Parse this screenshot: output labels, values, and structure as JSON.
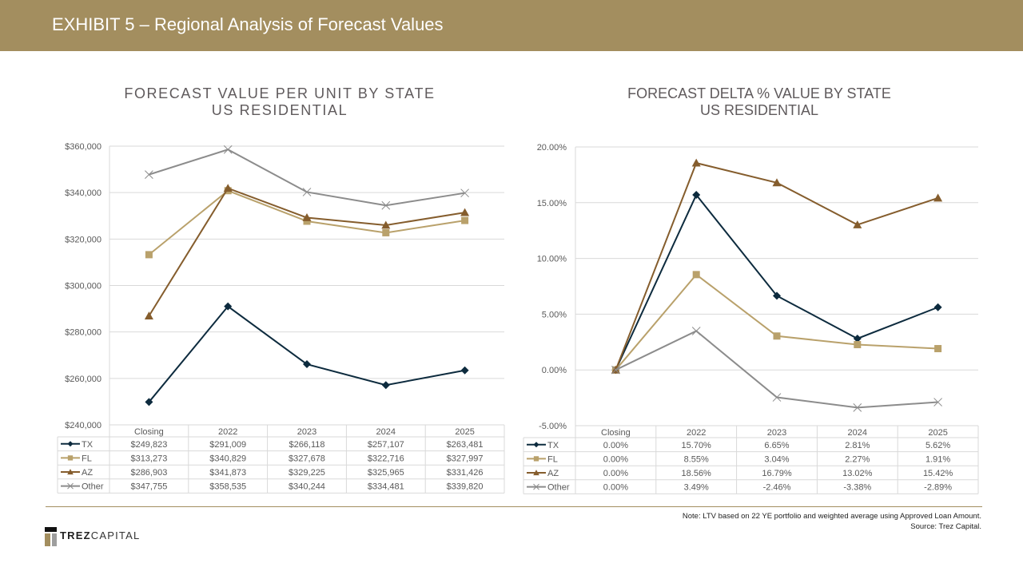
{
  "header": {
    "title": "EXHIBIT  5 – Regional Analysis of Forecast Values"
  },
  "colors": {
    "header_bg": "#A38E5F",
    "TX": "#0D2B3E",
    "FL": "#B9A16B",
    "AZ": "#855D2D",
    "Other": "#8C8C8C",
    "grid": "#D9D9D9"
  },
  "chart_data": [
    {
      "type": "line",
      "title": "FORECAST VALUE PER UNIT BY STATE",
      "subtitle": "US RESIDENTIAL",
      "categories": [
        "Closing",
        "2022",
        "2023",
        "2024",
        "2025"
      ],
      "ylim": [
        240000,
        360000
      ],
      "yticks": [
        240000,
        260000,
        280000,
        300000,
        320000,
        340000,
        360000
      ],
      "ytick_labels": [
        "$240,000",
        "$260,000",
        "$280,000",
        "$300,000",
        "$320,000",
        "$340,000",
        "$360,000"
      ],
      "grid": true,
      "legend": "data-table",
      "series": [
        {
          "name": "TX",
          "marker": "diamond",
          "values": [
            249823,
            291009,
            266118,
            257107,
            263481
          ],
          "labels": [
            "$249,823",
            "$291,009",
            "$266,118",
            "$257,107",
            "$263,481"
          ]
        },
        {
          "name": "FL",
          "marker": "square",
          "values": [
            313273,
            340829,
            327678,
            322716,
            327997
          ],
          "labels": [
            "$313,273",
            "$340,829",
            "$327,678",
            "$322,716",
            "$327,997"
          ]
        },
        {
          "name": "AZ",
          "marker": "triangle",
          "values": [
            286903,
            341873,
            329225,
            325965,
            331426
          ],
          "labels": [
            "$286,903",
            "$341,873",
            "$329,225",
            "$325,965",
            "$331,426"
          ]
        },
        {
          "name": "Other",
          "marker": "x",
          "values": [
            347755,
            358535,
            340244,
            334481,
            339820
          ],
          "labels": [
            "$347,755",
            "$358,535",
            "$340,244",
            "$334,481",
            "$339,820"
          ]
        }
      ]
    },
    {
      "type": "line",
      "title": "FORECAST DELTA % VALUE BY STATE",
      "subtitle": "US RESIDENTIAL",
      "categories": [
        "Closing",
        "2022",
        "2023",
        "2024",
        "2025"
      ],
      "ylim": [
        -5,
        20
      ],
      "yticks": [
        -5,
        0,
        5,
        10,
        15,
        20
      ],
      "ytick_labels": [
        "-5.00%",
        "0.00%",
        "5.00%",
        "10.00%",
        "15.00%",
        "20.00%"
      ],
      "grid": true,
      "legend": "data-table",
      "series": [
        {
          "name": "TX",
          "marker": "diamond",
          "values": [
            0.0,
            15.7,
            6.65,
            2.81,
            5.62
          ],
          "labels": [
            "0.00%",
            "15.70%",
            "6.65%",
            "2.81%",
            "5.62%"
          ]
        },
        {
          "name": "FL",
          "marker": "square",
          "values": [
            0.0,
            8.55,
            3.04,
            2.27,
            1.91
          ],
          "labels": [
            "0.00%",
            "8.55%",
            "3.04%",
            "2.27%",
            "1.91%"
          ]
        },
        {
          "name": "AZ",
          "marker": "triangle",
          "values": [
            0.0,
            18.56,
            16.79,
            13.02,
            15.42
          ],
          "labels": [
            "0.00%",
            "18.56%",
            "16.79%",
            "13.02%",
            "15.42%"
          ]
        },
        {
          "name": "Other",
          "marker": "x",
          "values": [
            0.0,
            3.49,
            -2.46,
            -3.38,
            -2.89
          ],
          "labels": [
            "0.00%",
            "3.49%",
            "-2.46%",
            "-3.38%",
            "-2.89%"
          ]
        }
      ]
    }
  ],
  "footer": {
    "note": "Note: LTV based on 22 YE portfolio and weighted average using Approved Loan Amount.",
    "source": "Source: Trez Capital.",
    "logo_bold": "TREZ",
    "logo_light": "CAPITAL"
  }
}
